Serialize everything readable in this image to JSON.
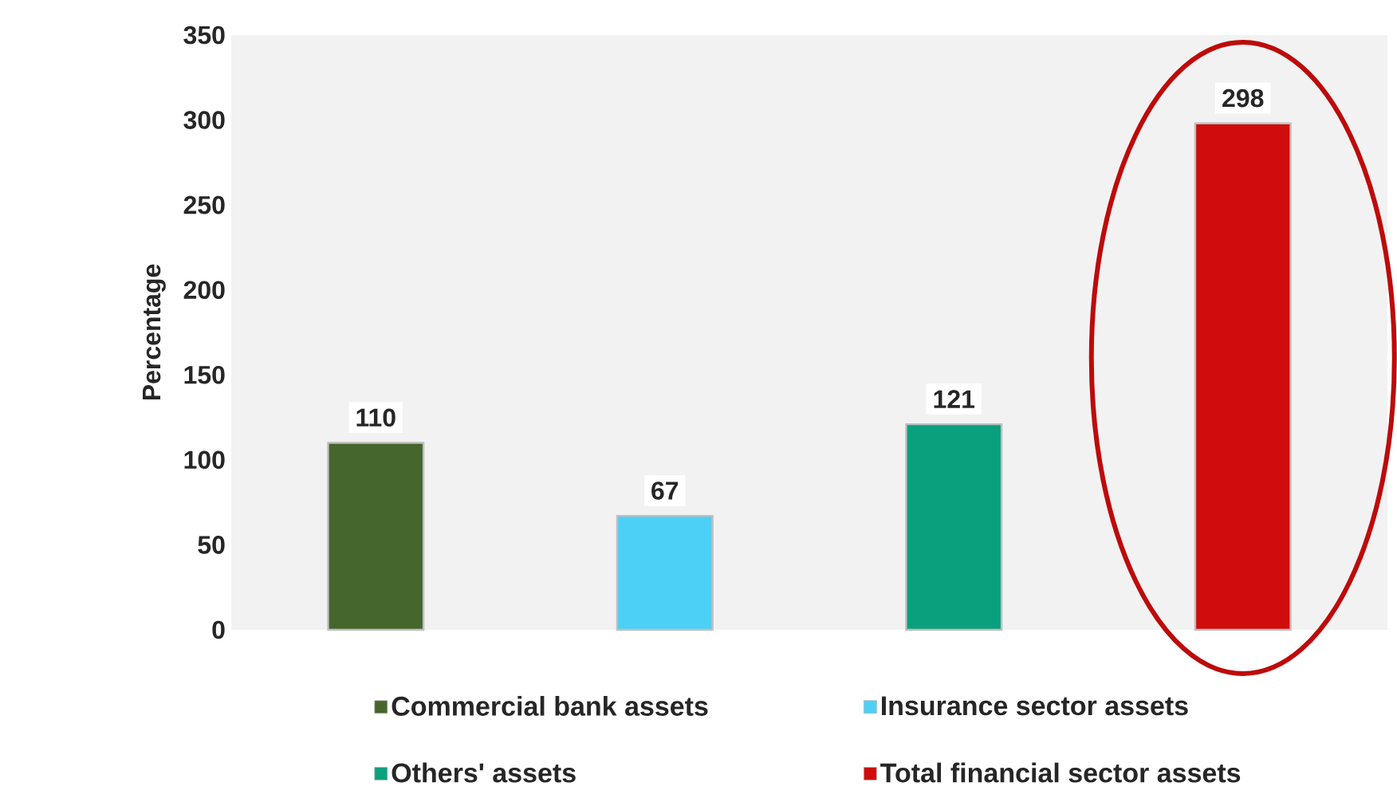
{
  "chart_data": {
    "type": "bar",
    "ylabel": "Percentage",
    "stacked": true,
    "categories": [
      null,
      null,
      null,
      null
    ],
    "series": [
      {
        "name": "Commercial bank assets",
        "color": "#45662c",
        "values": [
          110,
          null,
          null,
          null
        ]
      },
      {
        "name": "Insurance sector assets",
        "color": "#4cd0f5",
        "values": [
          null,
          67,
          null,
          null
        ]
      },
      {
        "name": "Others' assets",
        "color": "#0aa07e",
        "values": [
          null,
          null,
          121,
          null
        ]
      },
      {
        "name": "Total financial sector assets",
        "color": "#d00c0c",
        "values": [
          null,
          null,
          null,
          298
        ]
      }
    ],
    "ylim": [
      0,
      350
    ],
    "yticks": [
      0,
      50,
      100,
      150,
      200,
      250,
      300,
      350
    ],
    "data_labels": true,
    "legend": "bottom",
    "grid": false
  }
}
